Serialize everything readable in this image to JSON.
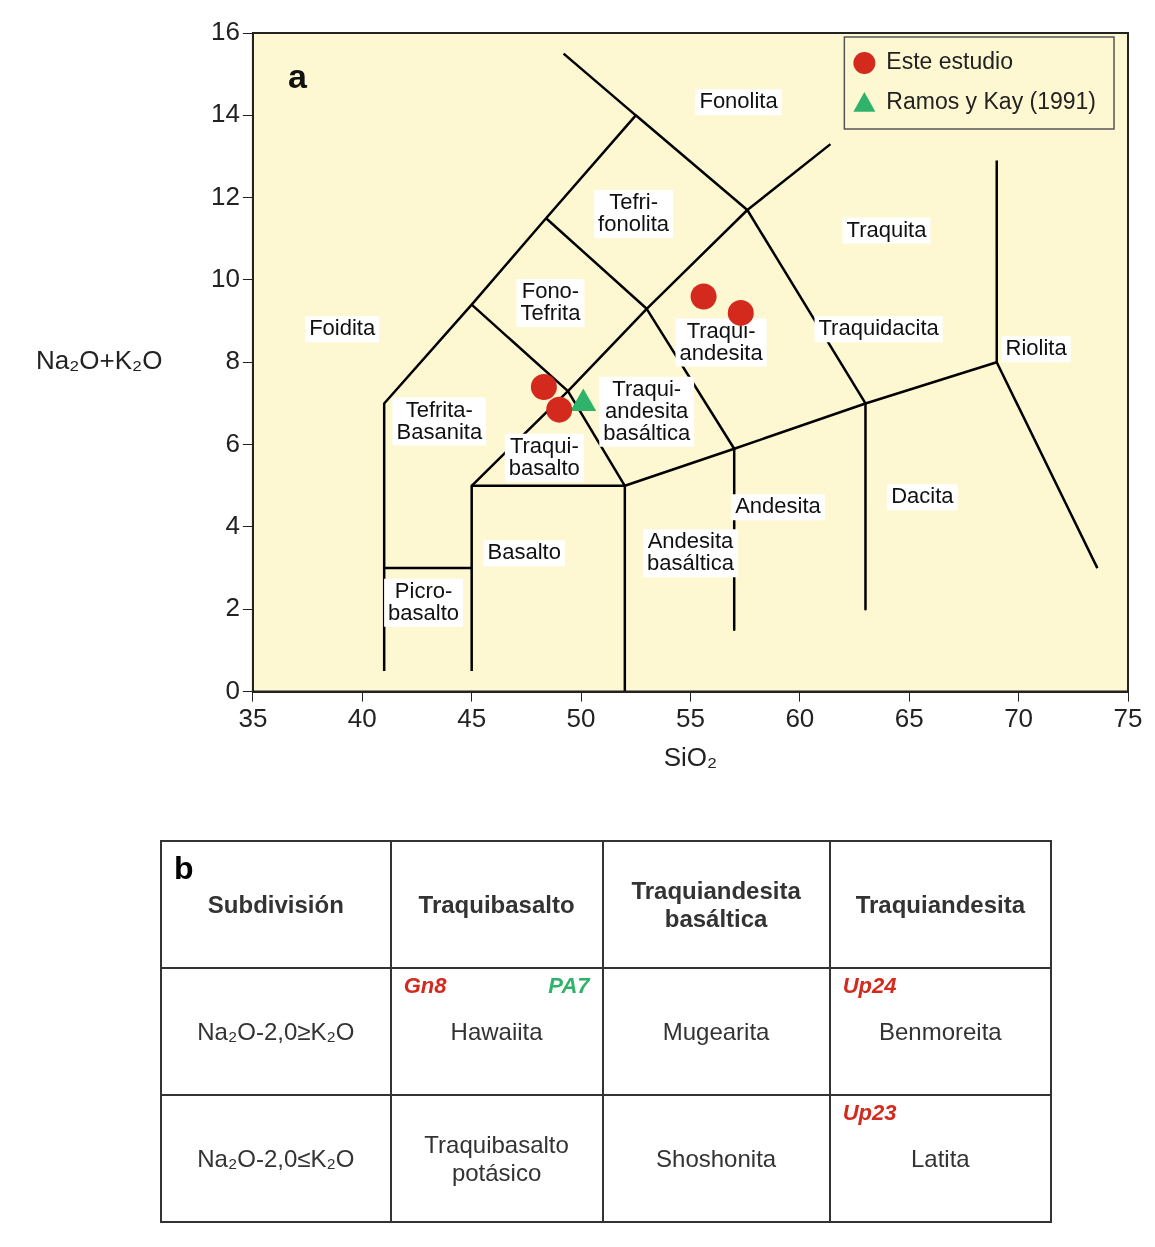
{
  "chart_data": [
    {
      "type": "scatter",
      "xlabel": "SiO₂",
      "ylabel": "Na₂O+K₂O",
      "xlim": [
        35,
        75
      ],
      "xticks": [
        35,
        40,
        45,
        50,
        55,
        60,
        65,
        70,
        75
      ],
      "ylim": [
        0,
        16
      ],
      "yticks": [
        0,
        2,
        4,
        6,
        8,
        10,
        12,
        14,
        16
      ],
      "grid": false,
      "legend": "top right",
      "series": [
        {
          "name": "Este estudio",
          "color": "#d42a1e",
          "marker": "circle",
          "x": [
            55.6,
            57.3,
            48.3,
            49.0
          ],
          "values": [
            9.6,
            9.2,
            7.4,
            6.85
          ]
        },
        {
          "name": "Ramos y Kay (1991)",
          "color": "#2fb36b",
          "marker": "triangle",
          "x": [
            50.1
          ],
          "values": [
            7.0
          ]
        },
        {
          "type": "line",
          "color": "#000000",
          "marker": "none",
          "x": [
            41,
            41,
            45,
            48.4,
            52.5,
            57.6,
            63
          ],
          "values": [
            0.5,
            7,
            9.4,
            11.5,
            14,
            11.7,
            7
          ]
        },
        {
          "type": "line",
          "color": "#000000",
          "marker": "none",
          "x": [
            41,
            45
          ],
          "values": [
            3,
            3
          ]
        },
        {
          "type": "line",
          "color": "#000000",
          "marker": "none",
          "x": [
            45,
            45,
            52,
            52
          ],
          "values": [
            0.5,
            5,
            5,
            0
          ]
        },
        {
          "type": "line",
          "color": "#000000",
          "marker": "none",
          "x": [
            45,
            49.4,
            53,
            57.6,
            61.4
          ],
          "values": [
            5,
            7.3,
            9.3,
            11.7,
            13.3
          ]
        },
        {
          "type": "line",
          "color": "#000000",
          "marker": "none",
          "x": [
            45,
            49.4,
            52
          ],
          "values": [
            9.4,
            7.3,
            5
          ]
        },
        {
          "type": "line",
          "color": "#000000",
          "marker": "none",
          "x": [
            48.4,
            53,
            57,
            57
          ],
          "values": [
            11.5,
            9.3,
            5.9,
            1.5
          ]
        },
        {
          "type": "line",
          "color": "#000000",
          "marker": "none",
          "x": [
            52.5,
            49.2
          ],
          "values": [
            14,
            15.5
          ]
        },
        {
          "type": "line",
          "color": "#000000",
          "marker": "none",
          "x": [
            52,
            57,
            63,
            69,
            73.6
          ],
          "values": [
            5,
            5.9,
            7,
            8,
            3
          ]
        },
        {
          "type": "line",
          "color": "#000000",
          "marker": "none",
          "x": [
            63,
            63
          ],
          "values": [
            7,
            2
          ]
        },
        {
          "type": "line",
          "color": "#000000",
          "marker": "none",
          "x": [
            69,
            69
          ],
          "values": [
            8,
            12.9
          ]
        }
      ],
      "annotations": [
        "a",
        "Fonolita",
        "Tefri-\nfonolita",
        "Traquita",
        "Fono-\nTefrita",
        "Foidita",
        "Traqui-\nandesita",
        "Traquidacita",
        "Riolita",
        "Tefrita-\nBasanita",
        "Traqui-\nandesita\nbasáltica",
        "Traqui-\nbasalto",
        "Andesita",
        "Dacita",
        "Andesita\nbasáltica",
        "Basalto",
        "Picro-\nbasalto"
      ]
    },
    {
      "type": "other",
      "annotations": [
        "b",
        "Subdivisión",
        "Traquibasalto",
        "Traquiandesita\nbasáltica",
        "Traquiandesita",
        "Na₂O-2,0≥K₂O",
        "Hawaiita",
        "Mugearita",
        "Benmoreita",
        "Na₂O-2,0≤K₂O",
        "Traquibasalto\npotásico",
        "Shoshonita",
        "Latita",
        "Gn8",
        "PA7",
        "Up24",
        "Up23"
      ]
    }
  ]
}
